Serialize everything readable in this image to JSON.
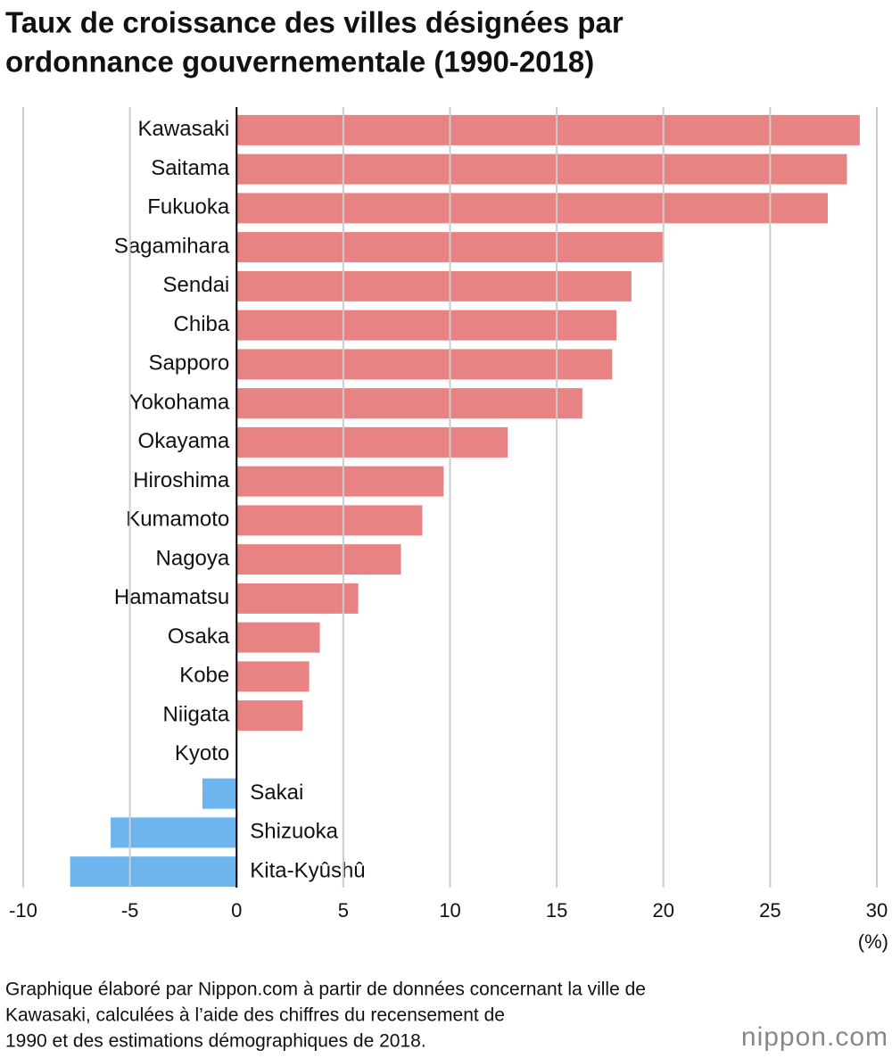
{
  "chart_data": {
    "type": "hbar",
    "title": [
      "Taux de croissance des villes désignées par",
      "ordonnance gouvernementale (1990-2018)"
    ],
    "categories": [
      "Kawasaki",
      "Saitama",
      "Fukuoka",
      "Sagamihara",
      "Sendai",
      "Chiba",
      "Sapporo",
      "Yokohama",
      "Okayama",
      "Hiroshima",
      "Kumamoto",
      "Nagoya",
      "Hamamatsu",
      "Osaka",
      "Kobe",
      "Niigata",
      "Kyoto",
      "Sakai",
      "Shizuoka",
      "Kita-Kyûshû"
    ],
    "values": [
      29.2,
      28.6,
      27.7,
      20.0,
      18.5,
      17.8,
      17.6,
      16.2,
      12.7,
      9.7,
      8.7,
      7.7,
      5.7,
      3.9,
      3.4,
      3.1,
      0,
      -1.6,
      -5.9,
      -7.8
    ],
    "positive_color": "#e88383",
    "negative_color": "#6db5ee",
    "xlim": [
      -10,
      30
    ],
    "xticks": [
      -10,
      -5,
      0,
      5,
      10,
      15,
      20,
      25,
      30
    ],
    "grid": true,
    "x_unit": "(%)",
    "note": [
      "Graphique élaboré par Nippon.com à partir de données concernant la ville de",
      "Kawasaki, calculées à l’aide des chiffres du recensement de",
      "1990 et des estimations démographiques de 2018."
    ],
    "logo": "nippon.com"
  }
}
